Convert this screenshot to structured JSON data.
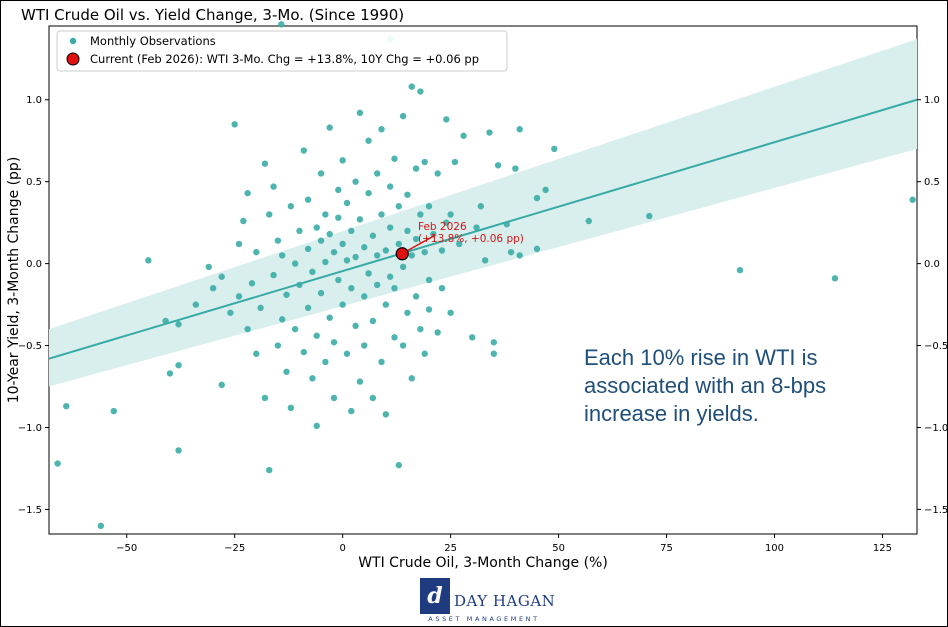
{
  "chart_data": {
    "type": "scatter",
    "title": "WTI Crude Oil vs. Yield Change, 3-Mo. (Since 1990)",
    "xlabel": "WTI Crude Oil, 3-Month Change (%)",
    "ylabel": "10-Year Yield, 3-Month Change (pp)",
    "xlim": [
      -68,
      133
    ],
    "ylim": [
      -1.65,
      1.45
    ],
    "xticks": [
      -50,
      -25,
      0,
      25,
      50,
      75,
      100,
      125
    ],
    "xtick_labels": [
      "−50",
      "−25",
      "0",
      "25",
      "50",
      "75",
      "100",
      "125"
    ],
    "yticks": [
      -1.5,
      -1.0,
      -0.5,
      0.0,
      0.5,
      1.0
    ],
    "ytick_labels": [
      "−1.5",
      "−1.0",
      "−0.5",
      "0.0",
      "0.5",
      "1.0"
    ],
    "grid": false,
    "legend_position": "top-left",
    "colors": {
      "points": "#3aaca6",
      "regression_line": "#37aaa6",
      "confidence_band": "#d9efee",
      "current_marker": "#e01010",
      "annotation": "#d01515",
      "callout": "#1f4e79"
    },
    "series": [
      {
        "name": "Monthly Observations",
        "type": "scatter",
        "points": [
          [
            -14.2,
            1.46
          ],
          [
            11,
            1.37
          ],
          [
            -66,
            -1.22
          ],
          [
            -64,
            -0.87
          ],
          [
            -56,
            -1.6
          ],
          [
            -53,
            -0.9
          ],
          [
            -45,
            0.02
          ],
          [
            -41,
            -0.35
          ],
          [
            -40,
            -0.67
          ],
          [
            -38,
            -1.14
          ],
          [
            -38,
            -0.62
          ],
          [
            -38,
            -0.37
          ],
          [
            -34,
            -0.25
          ],
          [
            -31,
            -0.02
          ],
          [
            -30,
            -0.15
          ],
          [
            -28,
            -0.08
          ],
          [
            -28,
            -0.74
          ],
          [
            -26,
            -0.3
          ],
          [
            -25,
            0.85
          ],
          [
            -24,
            0.12
          ],
          [
            -24,
            -0.2
          ],
          [
            -23,
            0.26
          ],
          [
            -22,
            -0.4
          ],
          [
            -22,
            0.43
          ],
          [
            -21,
            -0.12
          ],
          [
            -20,
            -0.55
          ],
          [
            -20,
            0.07
          ],
          [
            -19,
            -0.27
          ],
          [
            -18,
            0.61
          ],
          [
            -18,
            -0.82
          ],
          [
            -17,
            0.3
          ],
          [
            -17,
            -1.26
          ],
          [
            -16,
            0.47
          ],
          [
            -16,
            -0.07
          ],
          [
            -15,
            -0.5
          ],
          [
            -15,
            0.14
          ],
          [
            -14,
            -0.34
          ],
          [
            -14,
            0.05
          ],
          [
            -13,
            -0.19
          ],
          [
            -13,
            -0.66
          ],
          [
            -12,
            0.35
          ],
          [
            -12,
            -0.88
          ],
          [
            -11,
            0.0
          ],
          [
            -11,
            -0.4
          ],
          [
            -10,
            0.2
          ],
          [
            -10,
            -0.13
          ],
          [
            -9,
            0.69
          ],
          [
            -9,
            -0.54
          ],
          [
            -8,
            0.09
          ],
          [
            -8,
            -0.27
          ],
          [
            -8,
            0.39
          ],
          [
            -7,
            -0.7
          ],
          [
            -7,
            -0.05
          ],
          [
            -6,
            0.22
          ],
          [
            -6,
            -0.44
          ],
          [
            -6,
            -0.99
          ],
          [
            -5,
            0.14
          ],
          [
            -5,
            0.55
          ],
          [
            -5,
            -0.18
          ],
          [
            -4,
            -0.6
          ],
          [
            -4,
            0.3
          ],
          [
            -4,
            0.01
          ],
          [
            -3,
            0.83
          ],
          [
            -3,
            -0.33
          ],
          [
            -3,
            0.18
          ],
          [
            -2,
            -0.82
          ],
          [
            -2,
            0.07
          ],
          [
            -2,
            -0.48
          ],
          [
            -1,
            0.45
          ],
          [
            -1,
            -0.1
          ],
          [
            -1,
            0.28
          ],
          [
            0,
            -0.25
          ],
          [
            0,
            0.12
          ],
          [
            0,
            0.63
          ],
          [
            1,
            -0.55
          ],
          [
            1,
            0.02
          ],
          [
            1,
            0.37
          ],
          [
            2,
            -0.9
          ],
          [
            2,
            -0.15
          ],
          [
            2,
            0.2
          ],
          [
            3,
            0.5
          ],
          [
            3,
            -0.38
          ],
          [
            3,
            0.04
          ],
          [
            4,
            -0.72
          ],
          [
            4,
            0.27
          ],
          [
            4,
            0.92
          ],
          [
            5,
            -0.2
          ],
          [
            5,
            0.1
          ],
          [
            5,
            -0.5
          ],
          [
            6,
            0.43
          ],
          [
            6,
            -0.06
          ],
          [
            6,
            0.75
          ],
          [
            7,
            -0.35
          ],
          [
            7,
            0.17
          ],
          [
            7,
            -0.82
          ],
          [
            8,
            0.55
          ],
          [
            8,
            -0.13
          ],
          [
            8,
            0.05
          ],
          [
            9,
            -0.6
          ],
          [
            9,
            0.3
          ],
          [
            9,
            0.82
          ],
          [
            10,
            -0.25
          ],
          [
            10,
            0.08
          ],
          [
            10,
            -0.92
          ],
          [
            11,
            0.47
          ],
          [
            11,
            -0.08
          ],
          [
            11,
            0.22
          ],
          [
            12,
            -0.45
          ],
          [
            12,
            0.64
          ],
          [
            12,
            -0.15
          ],
          [
            13,
            0.12
          ],
          [
            13,
            -1.23
          ],
          [
            13,
            0.35
          ],
          [
            14,
            -0.5
          ],
          [
            14,
            -0.02
          ],
          [
            14,
            0.9
          ],
          [
            15,
            0.42
          ],
          [
            15,
            -0.3
          ],
          [
            15,
            0.2
          ],
          [
            16,
            -0.7
          ],
          [
            16,
            0.05
          ],
          [
            16,
            1.08
          ],
          [
            17,
            0.58
          ],
          [
            17,
            -0.2
          ],
          [
            17,
            0.15
          ],
          [
            18,
            -0.4
          ],
          [
            18,
            0.3
          ],
          [
            18,
            1.05
          ],
          [
            19,
            -0.55
          ],
          [
            19,
            0.07
          ],
          [
            19,
            0.62
          ],
          [
            20,
            -0.1
          ],
          [
            20,
            0.35
          ],
          [
            20,
            -0.28
          ],
          [
            21,
            0.18
          ],
          [
            22,
            -0.42
          ],
          [
            22,
            0.55
          ],
          [
            23,
            0.08
          ],
          [
            23,
            -0.15
          ],
          [
            24,
            0.25
          ],
          [
            24,
            0.88
          ],
          [
            25,
            -0.3
          ],
          [
            25,
            0.3
          ],
          [
            26,
            0.62
          ],
          [
            27,
            0.12
          ],
          [
            28,
            0.78
          ],
          [
            30,
            -0.45
          ],
          [
            31,
            0.22
          ],
          [
            32,
            0.35
          ],
          [
            33,
            0.02
          ],
          [
            34,
            0.8
          ],
          [
            35,
            -0.48
          ],
          [
            35,
            -0.55
          ],
          [
            36,
            0.6
          ],
          [
            38,
            0.24
          ],
          [
            39,
            0.07
          ],
          [
            40,
            0.58
          ],
          [
            41,
            0.82
          ],
          [
            41,
            0.05
          ],
          [
            45,
            0.09
          ],
          [
            45,
            0.4
          ],
          [
            47,
            0.45
          ],
          [
            49,
            0.7
          ],
          [
            57,
            0.26
          ],
          [
            71,
            0.29
          ],
          [
            92,
            -0.04
          ],
          [
            114,
            -0.09
          ],
          [
            132,
            0.39
          ]
        ]
      },
      {
        "name": "Current (Feb 2026): WTI 3-Mo. Chg = +13.8%,  10Y Chg = +0.06 pp",
        "type": "marker",
        "x": 13.8,
        "y": 0.06
      }
    ],
    "regression": {
      "x": [
        -68,
        133
      ],
      "y": [
        -0.58,
        1.0
      ],
      "band_upper": [
        -0.4,
        1.37
      ],
      "band_lower": [
        -0.75,
        0.7
      ]
    },
    "annotation": {
      "line1": "Feb 2026",
      "line2": "(+13.8%, +0.06 pp)"
    },
    "callout": {
      "line1": "Each 10% rise in WTI is",
      "line2": "associated with an 8-bps",
      "line3": "increase in yields."
    }
  },
  "logo": {
    "mark": "d",
    "name": "DAY HAGAN",
    "tagline": "ASSET MANAGEMENT"
  }
}
